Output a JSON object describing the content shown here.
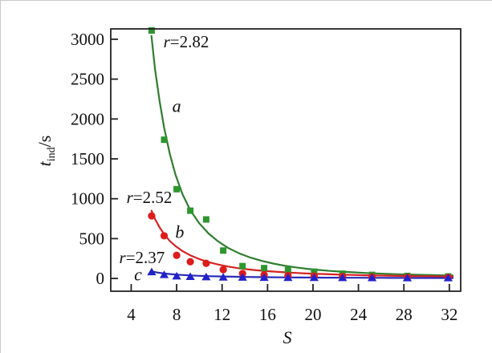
{
  "page": {
    "background": "#ffffff",
    "border_color": "#c9c9c9"
  },
  "chart_data": {
    "type": "scatter",
    "title": "",
    "xlabel": "S",
    "ylabel": "t_ind/s",
    "ylabel_parts": {
      "symbol": "t",
      "subscript": "ind",
      "unit": "/s"
    },
    "axis_color": "#222222",
    "text_color": "#111111",
    "grid": false,
    "xlim": [
      2.2,
      33.0
    ],
    "ylim": [
      -160,
      3130
    ],
    "x_ticks": [
      4,
      8,
      12,
      16,
      20,
      24,
      28,
      32
    ],
    "y_ticks": [
      0,
      500,
      1000,
      1500,
      2000,
      2500,
      3000
    ],
    "x": [
      5.8,
      6.9,
      8.0,
      9.2,
      10.6,
      12.1,
      13.8,
      15.7,
      17.8,
      20.1,
      22.6,
      25.2,
      28.3,
      31.9
    ],
    "series": [
      {
        "name": "a",
        "letter": "a",
        "letter_pos": [
          8.0,
          2163
        ],
        "label": {
          "prefix": "r",
          "value": "=2.82"
        },
        "label_pos": [
          8.84,
          2968
        ],
        "marker": "square",
        "marker_color": "#2e962e",
        "curve_color": "#2f7d2f",
        "values": [
          3110,
          1740,
          1120,
          850,
          740,
          350,
          155,
          130,
          105,
          85,
          60,
          45,
          32,
          26
        ],
        "curve": [
          [
            5.78,
            3040
          ],
          [
            6.1,
            2620
          ],
          [
            6.5,
            2220
          ],
          [
            6.9,
            1890
          ],
          [
            7.4,
            1560
          ],
          [
            7.9,
            1300
          ],
          [
            8.5,
            1060
          ],
          [
            9.2,
            855
          ],
          [
            10,
            690
          ],
          [
            10.8,
            565
          ],
          [
            11.6,
            470
          ],
          [
            12.5,
            385
          ],
          [
            13.5,
            315
          ],
          [
            14.5,
            262
          ],
          [
            15.5,
            220
          ],
          [
            16.5,
            187
          ],
          [
            17.5,
            160
          ],
          [
            18.5,
            139
          ],
          [
            19.5,
            121
          ],
          [
            20.5,
            107
          ],
          [
            21.5,
            95
          ],
          [
            22.5,
            85
          ],
          [
            23.5,
            77
          ],
          [
            24.5,
            69
          ],
          [
            25.5,
            63
          ],
          [
            26.5,
            58
          ],
          [
            27.5,
            53
          ],
          [
            28.5,
            49
          ],
          [
            29.5,
            45
          ],
          [
            30.5,
            42
          ],
          [
            31.5,
            39
          ],
          [
            32.3,
            37
          ]
        ]
      },
      {
        "name": "b",
        "letter": "b",
        "letter_pos": [
          8.27,
          583
        ],
        "label": {
          "prefix": "r",
          "value": "=2.52"
        },
        "label_pos": [
          5.59,
          1016
        ],
        "marker": "circle",
        "marker_color": "#dd1c1c",
        "curve_color": "#d62222",
        "values": [
          785,
          535,
          290,
          210,
          190,
          110,
          62,
          46,
          36,
          30,
          25,
          20,
          16,
          14
        ],
        "curve": [
          [
            5.78,
            850
          ],
          [
            6.1,
            745
          ],
          [
            6.5,
            640
          ],
          [
            6.9,
            555
          ],
          [
            7.4,
            470
          ],
          [
            7.9,
            405
          ],
          [
            8.5,
            345
          ],
          [
            9.2,
            290
          ],
          [
            10,
            242
          ],
          [
            10.8,
            205
          ],
          [
            11.6,
            176
          ],
          [
            12.5,
            150
          ],
          [
            13.5,
            128
          ],
          [
            14.5,
            111
          ],
          [
            15.5,
            97
          ],
          [
            16.5,
            86
          ],
          [
            17.5,
            77
          ],
          [
            18.5,
            69
          ],
          [
            19.5,
            62
          ],
          [
            20.5,
            57
          ],
          [
            21.5,
            52
          ],
          [
            22.5,
            47
          ],
          [
            23.5,
            44
          ],
          [
            24.5,
            40
          ],
          [
            25.5,
            37
          ],
          [
            26.5,
            35
          ],
          [
            27.5,
            32
          ],
          [
            28.5,
            30
          ],
          [
            29.5,
            28
          ],
          [
            30.5,
            27
          ],
          [
            31.5,
            25
          ],
          [
            32.3,
            24
          ]
        ]
      },
      {
        "name": "c",
        "letter": "c",
        "letter_pos": [
          4.6,
          50
        ],
        "label": {
          "prefix": "r",
          "value": "=2.37"
        },
        "label_pos": [
          4.95,
          262
        ],
        "marker": "triangle",
        "marker_color": "#2222cc",
        "curve_color": "#2a2ab8",
        "values": [
          80,
          45,
          28,
          21,
          17,
          14,
          12,
          10,
          9,
          8,
          7,
          6,
          5,
          5
        ],
        "curve": [
          [
            5.78,
            90
          ],
          [
            6.3,
            74
          ],
          [
            6.9,
            62
          ],
          [
            7.6,
            52
          ],
          [
            8.4,
            44
          ],
          [
            9.2,
            38
          ],
          [
            10,
            33
          ],
          [
            11,
            28
          ],
          [
            12,
            25
          ],
          [
            13,
            22
          ],
          [
            14,
            19
          ],
          [
            15,
            17
          ],
          [
            16,
            16
          ],
          [
            17,
            14
          ],
          [
            18,
            13
          ],
          [
            19,
            12
          ],
          [
            20,
            11
          ],
          [
            21,
            10
          ],
          [
            22,
            10
          ],
          [
            23,
            9
          ],
          [
            24,
            9
          ],
          [
            25,
            8
          ],
          [
            26,
            8
          ],
          [
            27,
            7
          ],
          [
            28,
            7
          ],
          [
            29,
            6
          ],
          [
            30,
            6
          ],
          [
            31,
            6
          ],
          [
            32.3,
            5
          ]
        ]
      }
    ]
  }
}
